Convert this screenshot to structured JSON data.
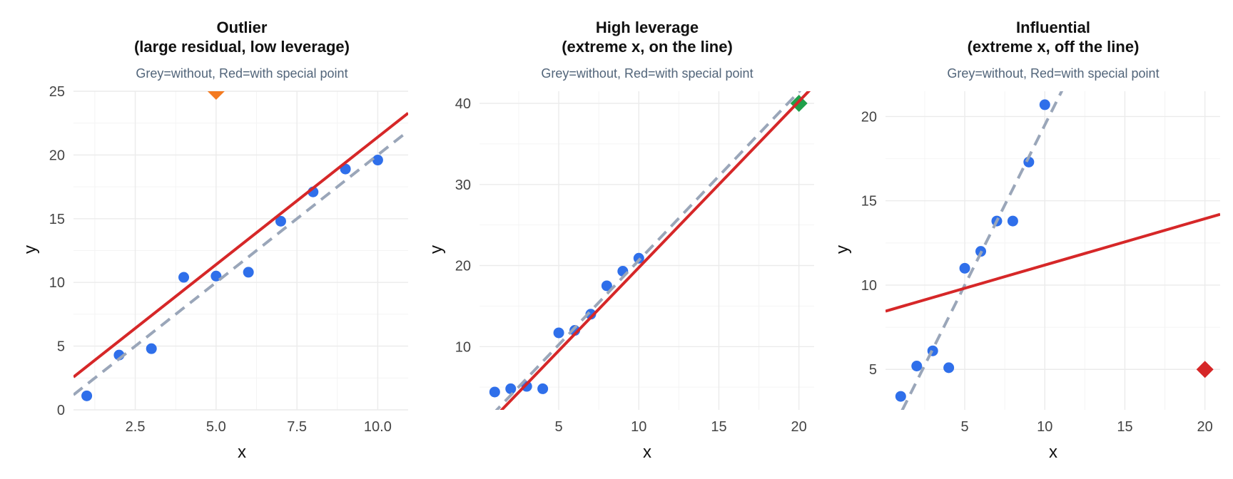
{
  "colors": {
    "background": "#ffffff",
    "grid_major": "#ebebeb",
    "grid_minor": "#f4f4f4",
    "base_point": "#2f6fea",
    "fit_with": "#d62728",
    "fit_without": "#9aa6b9",
    "outlier_point": "#f47a20",
    "leverage_point": "#20a04a",
    "influential_point": "#d62728"
  },
  "chart_data": [
    {
      "type": "scatter",
      "title_lines": [
        "Outlier",
        "(large residual, low leverage)"
      ],
      "subtitle": "Grey=without, Red=with special point",
      "xlabel": "x",
      "ylabel": "y",
      "xlim": [
        0.59,
        10.94
      ],
      "ylim": [
        0,
        25
      ],
      "x_ticks": [
        2.5,
        5.0,
        7.5,
        10.0
      ],
      "x_tick_labels": [
        "2.5",
        "5.0",
        "7.5",
        "10.0"
      ],
      "y_ticks": [
        0,
        5,
        10,
        15,
        20,
        25
      ],
      "y_tick_labels": [
        "0",
        "5",
        "10",
        "15",
        "20",
        "25"
      ],
      "grid": true,
      "points": {
        "x": [
          1,
          2,
          3,
          4,
          5,
          6,
          7,
          8,
          9,
          10
        ],
        "y": [
          1.1,
          4.3,
          4.8,
          10.4,
          10.5,
          10.8,
          14.8,
          17.1,
          18.9,
          19.6
        ]
      },
      "special_point": {
        "x": 5,
        "y": 25,
        "marker": "diamond",
        "color": "#f47a20"
      },
      "lines": [
        {
          "name": "Grey=without",
          "intercept": 0.0,
          "slope": 2.0,
          "style": "dashed",
          "color": "#9aa6b9"
        },
        {
          "name": "Red=with special point",
          "intercept": 1.4,
          "slope": 2.0,
          "style": "solid",
          "color": "#d62728"
        }
      ]
    },
    {
      "type": "scatter",
      "title_lines": [
        "High leverage",
        "(extreme x, on the line)"
      ],
      "subtitle": "Grey=without, Red=with special point",
      "xlabel": "x",
      "ylabel": "y",
      "xlim": [
        0.05,
        20.95
      ],
      "ylim": [
        2.2,
        41.5
      ],
      "x_ticks": [
        5,
        10,
        15,
        20
      ],
      "x_tick_labels": [
        "5",
        "10",
        "15",
        "20"
      ],
      "y_ticks": [
        10,
        20,
        30,
        40
      ],
      "y_tick_labels": [
        "10",
        "20",
        "30",
        "40"
      ],
      "grid": true,
      "points": {
        "x": [
          1,
          2,
          3,
          4,
          5,
          6,
          7,
          8,
          9,
          10
        ],
        "y": [
          4.4,
          4.8,
          5.1,
          4.8,
          11.7,
          12.0,
          14.0,
          17.5,
          19.3,
          20.9
        ]
      },
      "special_point": {
        "x": 20,
        "y": 40,
        "marker": "diamond",
        "color": "#20a04a"
      },
      "lines": [
        {
          "name": "Grey=without",
          "intercept": -0.16,
          "slope": 2.08,
          "style": "dashed",
          "color": "#9aa6b9"
        },
        {
          "name": "Red=with special point",
          "intercept": -0.75,
          "slope": 2.05,
          "style": "solid",
          "color": "#d62728"
        }
      ]
    },
    {
      "type": "scatter",
      "title_lines": [
        "Influential",
        "(extreme x, off the line)"
      ],
      "subtitle": "Grey=without, Red=with special point",
      "xlabel": "x",
      "ylabel": "y",
      "xlim": [
        0.05,
        20.95
      ],
      "ylim": [
        2.6,
        21.5
      ],
      "x_ticks": [
        5,
        10,
        15,
        20
      ],
      "x_tick_labels": [
        "5",
        "10",
        "15",
        "20"
      ],
      "y_ticks": [
        5,
        10,
        15,
        20
      ],
      "y_tick_labels": [
        "5",
        "10",
        "15",
        "20"
      ],
      "grid": true,
      "points": {
        "x": [
          1,
          2,
          3,
          4,
          5,
          6,
          7,
          8,
          9,
          10
        ],
        "y": [
          3.4,
          5.2,
          6.1,
          5.1,
          11.0,
          12.0,
          13.8,
          13.8,
          17.3,
          20.7
        ]
      },
      "special_point": {
        "x": 20,
        "y": 5,
        "marker": "diamond",
        "color": "#d62728"
      },
      "lines": [
        {
          "name": "Grey=without",
          "intercept": 0.5,
          "slope": 1.9,
          "style": "dashed",
          "color": "#9aa6b9"
        },
        {
          "name": "Red=with special point",
          "intercept": 8.44,
          "slope": 0.275,
          "style": "solid",
          "color": "#d62728"
        }
      ]
    }
  ]
}
